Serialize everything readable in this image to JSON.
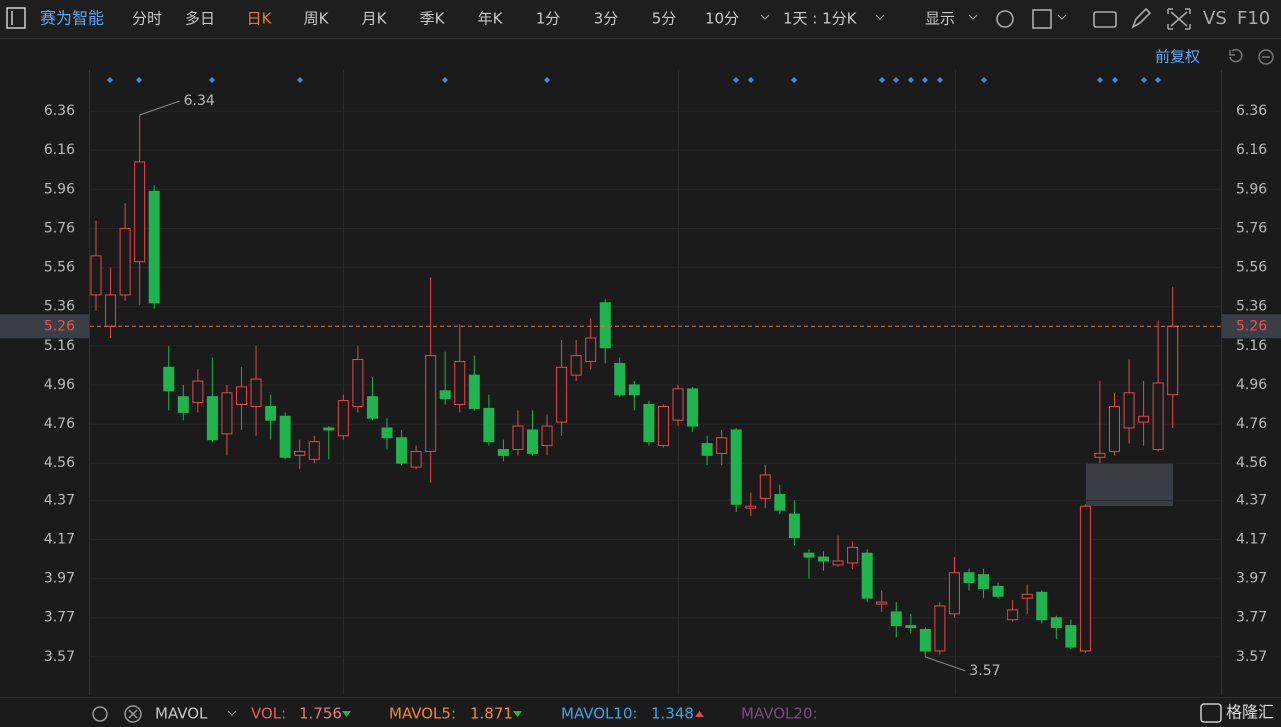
{
  "toolbar": {
    "stock": "赛为智能",
    "tabs": [
      "分时",
      "多日",
      "日K",
      "周K",
      "月K",
      "季K",
      "年K",
      "1分",
      "3分",
      "5分",
      "10分"
    ],
    "period": "1天 : 1分K",
    "display": "显示",
    "vs": "VS",
    "f10": "F10",
    "adjust": "前复权"
  },
  "chart_data": {
    "type": "candlestick",
    "open": [
      5.42,
      5.26,
      5.42,
      5.59,
      5.95,
      5.05,
      4.9,
      4.87,
      4.9,
      4.71,
      4.86,
      4.85,
      4.85,
      4.8,
      4.6,
      4.58,
      4.74,
      4.7,
      4.85,
      4.9,
      4.74,
      4.69,
      4.54,
      4.62,
      4.93,
      4.86,
      5.01,
      4.84,
      4.63,
      4.63,
      4.73,
      4.65,
      4.77,
      5.01,
      5.08,
      5.38,
      5.07,
      4.96,
      4.86,
      4.65,
      4.78,
      4.94,
      4.66,
      4.61,
      4.73,
      4.33,
      4.38,
      4.4,
      4.3,
      4.1,
      4.08,
      4.04,
      4.05,
      4.1,
      3.84,
      3.8,
      3.73,
      3.71,
      3.6,
      3.79,
      4.0,
      3.99,
      3.93,
      3.76,
      3.87,
      3.9,
      3.77,
      3.73,
      3.6,
      4.59,
      4.62,
      4.74,
      4.77,
      4.63,
      4.91
    ],
    "high": [
      5.8,
      5.56,
      5.89,
      6.34,
      5.98,
      5.16,
      4.96,
      5.04,
      5.1,
      4.96,
      5.05,
      5.16,
      4.91,
      4.82,
      4.68,
      4.7,
      4.75,
      4.91,
      5.16,
      5.0,
      4.79,
      4.73,
      4.65,
      5.51,
      5.13,
      5.27,
      5.11,
      4.91,
      4.68,
      4.83,
      4.83,
      4.81,
      5.19,
      5.19,
      5.3,
      5.4,
      5.1,
      4.98,
      4.88,
      4.86,
      4.96,
      4.95,
      4.7,
      4.73,
      4.74,
      4.41,
      4.55,
      4.45,
      4.37,
      4.12,
      4.11,
      4.19,
      4.16,
      4.12,
      3.91,
      3.85,
      3.79,
      3.72,
      3.85,
      4.08,
      4.02,
      4.02,
      3.95,
      3.86,
      3.94,
      3.91,
      3.78,
      3.76,
      4.35,
      4.98,
      4.92,
      5.09,
      4.98,
      5.29,
      5.46
    ],
    "low": [
      5.34,
      5.2,
      5.39,
      5.37,
      5.35,
      4.83,
      4.78,
      4.82,
      4.67,
      4.6,
      4.73,
      4.7,
      4.68,
      4.58,
      4.53,
      4.56,
      4.58,
      4.68,
      4.82,
      4.78,
      4.63,
      4.55,
      4.53,
      4.46,
      4.86,
      4.82,
      4.83,
      4.65,
      4.57,
      4.6,
      4.6,
      4.6,
      4.7,
      4.98,
      5.04,
      5.07,
      4.9,
      4.83,
      4.65,
      4.64,
      4.75,
      4.72,
      4.55,
      4.55,
      4.31,
      4.29,
      4.33,
      4.3,
      4.14,
      3.97,
      4.01,
      4.03,
      4.02,
      3.85,
      3.8,
      3.67,
      3.69,
      3.57,
      3.58,
      3.77,
      3.91,
      3.87,
      3.87,
      3.75,
      3.79,
      3.74,
      3.66,
      3.61,
      3.59,
      4.56,
      4.6,
      4.66,
      4.65,
      4.62,
      4.74
    ],
    "close": [
      5.62,
      5.42,
      5.76,
      6.1,
      5.38,
      4.93,
      4.82,
      4.98,
      4.68,
      4.92,
      4.95,
      4.99,
      4.78,
      4.59,
      4.62,
      4.67,
      4.73,
      4.88,
      5.09,
      4.79,
      4.69,
      4.56,
      4.62,
      5.11,
      4.89,
      5.08,
      4.84,
      4.67,
      4.6,
      4.75,
      4.61,
      4.75,
      5.05,
      5.11,
      5.2,
      5.15,
      4.91,
      4.91,
      4.67,
      4.85,
      4.94,
      4.75,
      4.6,
      4.69,
      4.35,
      4.34,
      4.5,
      4.32,
      4.18,
      4.08,
      4.06,
      4.06,
      4.13,
      3.87,
      3.85,
      3.73,
      3.72,
      3.6,
      3.83,
      4.0,
      3.95,
      3.92,
      3.88,
      3.81,
      3.89,
      3.76,
      3.72,
      3.62,
      4.34,
      4.61,
      4.85,
      4.92,
      4.8,
      4.97,
      5.26
    ],
    "up_color": "#e5484d",
    "down_color": "#1fb44e",
    "ylim": [
      3.375,
      6.57
    ],
    "yticks": [
      6.36,
      6.16,
      5.96,
      5.76,
      5.56,
      5.36,
      5.16,
      4.96,
      4.76,
      4.56,
      4.37,
      4.17,
      3.97,
      3.77,
      3.57
    ],
    "grid": true
  },
  "volume_bar": {
    "indicator": "MAVOL",
    "vol_label": "VOL:",
    "vol": 1.756,
    "mavol5_label": "MAVOL5:",
    "mavol5": 1.871,
    "mavol10_label": "MAVOL10:",
    "mavol10": 1.348,
    "mavol20_label": "MAVOL20:"
  },
  "logo": "格隆汇"
}
